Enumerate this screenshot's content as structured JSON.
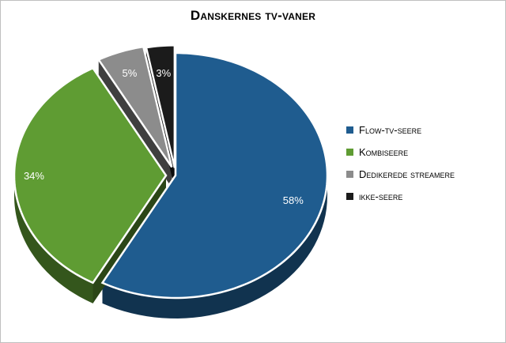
{
  "chart_data": {
    "type": "pie",
    "title": "Danskernes tv-vaner",
    "legend_position": "right",
    "exploded": true,
    "style": "3d",
    "slices": [
      {
        "name": "Flow-tv-seere",
        "value": 58,
        "label": "58%",
        "color": "#1f5c8f"
      },
      {
        "name": "Kombiseere",
        "value": 34,
        "label": "34%",
        "color": "#5f9c33"
      },
      {
        "name": "Dedikerede streamere",
        "value": 5,
        "label": "5%",
        "color": "#8c8c8c"
      },
      {
        "name": "ikke-seere",
        "value": 3,
        "label": "3%",
        "color": "#1b1b1b"
      }
    ]
  }
}
